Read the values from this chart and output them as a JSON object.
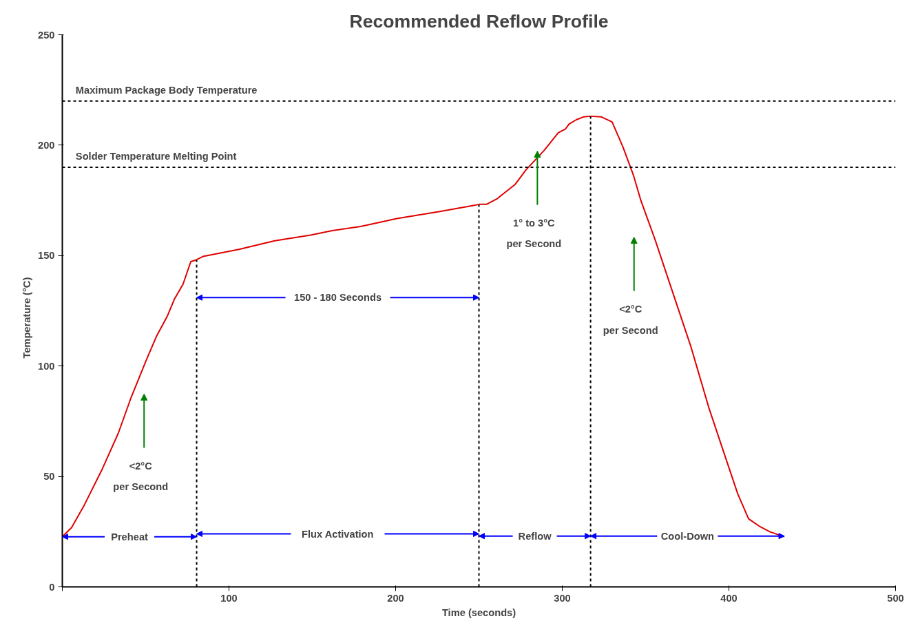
{
  "chart_data": {
    "type": "line",
    "title": "Recommended Reflow Profile",
    "xlabel": "Time (seconds)",
    "ylabel": "Temperature      (°C)",
    "xlim": [
      0,
      500
    ],
    "ylim": [
      0,
      250
    ],
    "xticks": [
      {
        "value": 0,
        "label": null
      },
      100,
      200,
      300,
      400,
      500
    ],
    "yticks": [
      0,
      50,
      100,
      150,
      200,
      250
    ],
    "grid": false,
    "marker": "none",
    "series": [
      {
        "color": "#e00000",
        "line_style": "solid",
        "x": [
          0,
          5.6,
          13.3,
          24,
          33.6,
          41.3,
          50,
          56.4,
          62.9,
          67.2,
          72.4,
          77.1,
          80.2,
          84.4,
          106,
          127.5,
          149,
          162,
          179,
          200.7,
          226.5,
          243.8,
          250.2,
          254.5,
          261,
          271.8,
          278.2,
          289,
          297.6,
          301.9,
          304,
          308.4,
          312.7,
          317,
          323.5,
          329.9,
          336.4,
          342.8,
          347.2,
          355.8,
          364.4,
          377.3,
          388,
          398.8,
          405.3,
          411.8,
          418.2,
          424.7,
          433.3
        ],
        "values": [
          22.7,
          26.9,
          37.2,
          53.4,
          69.6,
          85.8,
          102,
          113.3,
          122.4,
          130.2,
          137,
          147.3,
          148,
          149.6,
          152.8,
          156.7,
          159.3,
          161.3,
          163.2,
          166.8,
          170,
          172.3,
          173.2,
          173.2,
          175.8,
          182.3,
          188.8,
          197.5,
          205.6,
          207.3,
          209.5,
          211.5,
          212.8,
          213.1,
          212.8,
          210.5,
          199.2,
          186.2,
          174.9,
          157,
          137.6,
          108.5,
          81,
          56.7,
          42.1,
          30.8,
          27.5,
          24.9,
          22.7
        ]
      },
      {
        "color": "#000000",
        "line_style": "dotted",
        "x": [
          80.6,
          80.6
        ],
        "values": [
          0,
          148
        ]
      },
      {
        "color": "#000000",
        "line_style": "dotted",
        "x": [
          250,
          250
        ],
        "values": [
          0,
          173
        ]
      },
      {
        "color": "#000000",
        "line_style": "dotted",
        "x": [
          317,
          317
        ],
        "values": [
          0,
          213
        ]
      }
    ],
    "ref_lines": [
      {
        "axis": "y",
        "value": 220,
        "label": "Maximum Package Body Temperature",
        "color": "#000000",
        "line_style": "dotted"
      },
      {
        "axis": "y",
        "value": 190,
        "label": "Solder Temperature Melting Point",
        "color": "#000000",
        "line_style": "dotted"
      }
    ],
    "annotations": [
      {
        "text": "Preheat",
        "x": 0,
        "y": 22.7
      },
      {
        "text": "150 - 180 Seconds",
        "x": 80.6,
        "y": 131
      },
      {
        "text": "Flux Activation",
        "x": 80.6,
        "y": 24
      },
      {
        "text": "Reflow",
        "x": 250,
        "y": 23
      },
      {
        "text": "Cool-Down",
        "x": 317,
        "y": 23
      },
      "<2°C\nper Second",
      "1° to 3°C\nper Second",
      "<2°C\nper Second"
    ]
  }
}
